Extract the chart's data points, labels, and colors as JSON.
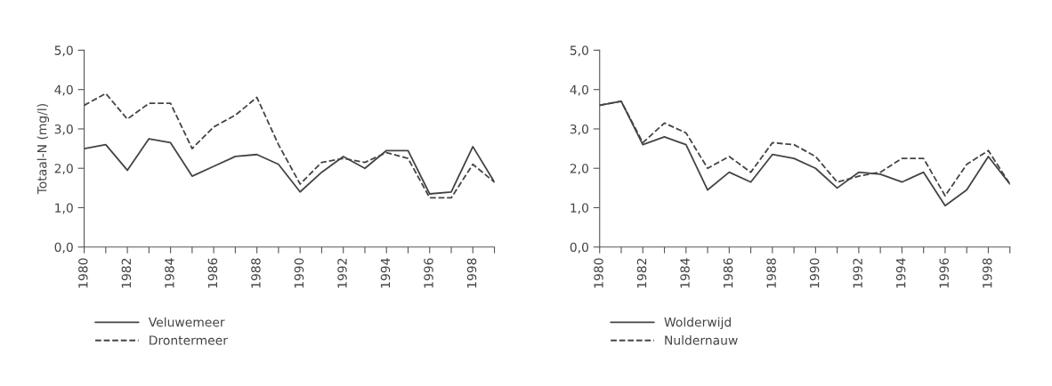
{
  "chart_data": [
    {
      "type": "line",
      "ylabel": "Totaal-N (mg/l)",
      "legend": "bottom",
      "grid": false,
      "marker": "none",
      "x": [
        1980,
        1981,
        1982,
        1983,
        1984,
        1985,
        1986,
        1987,
        1988,
        1989,
        1990,
        1991,
        1992,
        1993,
        1994,
        1995,
        1996,
        1997,
        1998,
        1999
      ],
      "xlim": [
        1980,
        1999
      ],
      "xticks": [
        1980,
        {
          "value": 1981,
          "label": null
        },
        1982,
        {
          "value": 1983,
          "label": null
        },
        1984,
        {
          "value": 1985,
          "label": null
        },
        1986,
        {
          "value": 1987,
          "label": null
        },
        1988,
        {
          "value": 1989,
          "label": null
        },
        1990,
        {
          "value": 1991,
          "label": null
        },
        1992,
        {
          "value": 1993,
          "label": null
        },
        1994,
        {
          "value": 1995,
          "label": null
        },
        1996,
        {
          "value": 1997,
          "label": null
        },
        1998,
        {
          "value": 1999,
          "label": null
        }
      ],
      "ylim": [
        0,
        5
      ],
      "yticks": [
        {
          "value": 0,
          "label": "0,0"
        },
        {
          "value": 1,
          "label": "1,0"
        },
        {
          "value": 2,
          "label": "2,0"
        },
        {
          "value": 3,
          "label": "3,0"
        },
        {
          "value": 4,
          "label": "4,0"
        },
        {
          "value": 5,
          "label": "5,0"
        }
      ],
      "series": [
        {
          "name": "Veluwemeer",
          "color": "#444444",
          "line_style": "solid",
          "values": [
            2.5,
            2.6,
            1.95,
            2.75,
            2.65,
            1.8,
            2.05,
            2.3,
            2.35,
            2.1,
            1.4,
            1.9,
            2.3,
            2.0,
            2.45,
            2.45,
            1.35,
            1.4,
            2.55,
            1.65
          ]
        },
        {
          "name": "Drontermeer",
          "color": "#444444",
          "line_style": "dashed",
          "values": [
            3.6,
            3.9,
            3.25,
            3.65,
            3.65,
            2.5,
            3.05,
            3.35,
            3.8,
            2.6,
            1.6,
            2.15,
            2.25,
            2.15,
            2.4,
            2.25,
            1.25,
            1.25,
            2.1,
            1.65
          ]
        }
      ]
    },
    {
      "type": "line",
      "legend": "bottom",
      "grid": false,
      "marker": "none",
      "x": [
        1980,
        1981,
        1982,
        1983,
        1984,
        1985,
        1986,
        1987,
        1988,
        1989,
        1990,
        1991,
        1992,
        1993,
        1994,
        1995,
        1996,
        1997,
        1998,
        1999
      ],
      "xlim": [
        1980,
        1999
      ],
      "xticks": [
        1980,
        {
          "value": 1981,
          "label": null
        },
        1982,
        {
          "value": 1983,
          "label": null
        },
        1984,
        {
          "value": 1985,
          "label": null
        },
        1986,
        {
          "value": 1987,
          "label": null
        },
        1988,
        {
          "value": 1989,
          "label": null
        },
        1990,
        {
          "value": 1991,
          "label": null
        },
        1992,
        {
          "value": 1993,
          "label": null
        },
        1994,
        {
          "value": 1995,
          "label": null
        },
        1996,
        {
          "value": 1997,
          "label": null
        },
        1998,
        {
          "value": 1999,
          "label": null
        }
      ],
      "ylim": [
        0,
        5
      ],
      "yticks": [
        {
          "value": 0,
          "label": "0,0"
        },
        {
          "value": 1,
          "label": "1,0"
        },
        {
          "value": 2,
          "label": "2,0"
        },
        {
          "value": 3,
          "label": "3,0"
        },
        {
          "value": 4,
          "label": "4,0"
        },
        {
          "value": 5,
          "label": "5,0"
        }
      ],
      "series": [
        {
          "name": "Wolderwijd",
          "color": "#444444",
          "line_style": "solid",
          "values": [
            3.6,
            3.7,
            2.6,
            2.8,
            2.6,
            1.45,
            1.9,
            1.65,
            2.35,
            2.25,
            2.0,
            1.5,
            1.9,
            1.85,
            1.65,
            1.9,
            1.05,
            1.45,
            2.3,
            1.6
          ]
        },
        {
          "name": "Nuldernauw",
          "color": "#444444",
          "line_style": "dashed",
          "values": [
            3.6,
            3.7,
            2.65,
            3.15,
            2.9,
            2.0,
            2.3,
            1.9,
            2.65,
            2.6,
            2.3,
            1.65,
            1.8,
            1.9,
            2.25,
            2.25,
            1.3,
            2.1,
            2.45,
            1.6
          ]
        }
      ]
    }
  ]
}
